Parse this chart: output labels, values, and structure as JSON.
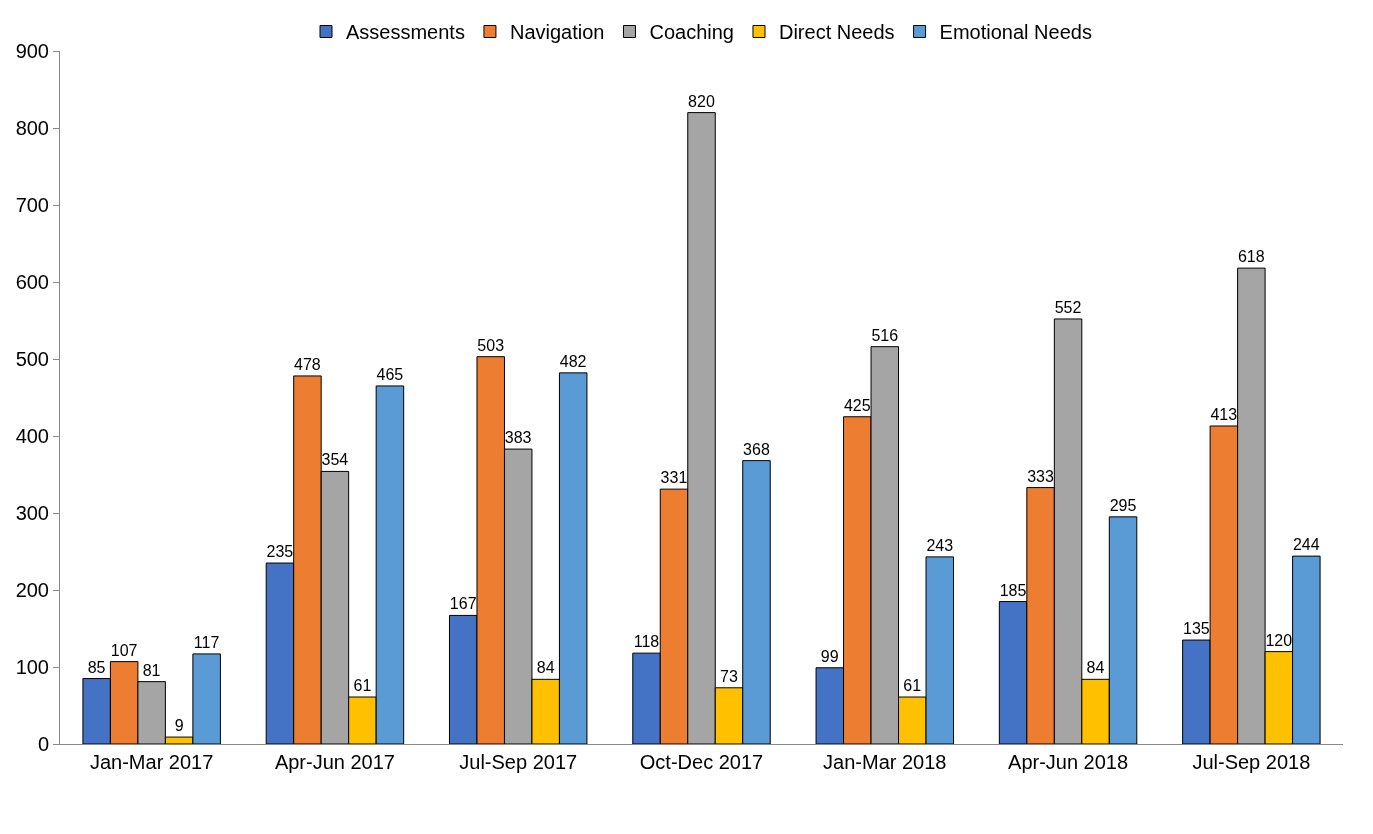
{
  "chart_data": {
    "type": "bar",
    "categories": [
      "Jan-Mar 2017",
      "Apr-Jun 2017",
      "Jul-Sep 2017",
      "Oct-Dec 2017",
      "Jan-Mar 2018",
      "Apr-Jun 2018",
      "Jul-Sep 2018"
    ],
    "series": [
      {
        "name": "Assessments",
        "color": "#4472c4",
        "values": [
          85,
          235,
          167,
          118,
          99,
          185,
          135
        ]
      },
      {
        "name": "Navigation",
        "color": "#ed7d31",
        "values": [
          107,
          478,
          503,
          331,
          425,
          333,
          413
        ]
      },
      {
        "name": "Coaching",
        "color": "#a5a5a5",
        "values": [
          81,
          354,
          383,
          820,
          516,
          552,
          618
        ]
      },
      {
        "name": "Direct Needs",
        "color": "#ffc000",
        "values": [
          9,
          61,
          84,
          73,
          61,
          84,
          120
        ]
      },
      {
        "name": "Emotional Needs",
        "color": "#5b9bd5",
        "values": [
          117,
          465,
          482,
          368,
          243,
          295,
          244
        ]
      }
    ],
    "ylim": [
      0,
      900
    ],
    "yticks": [
      0,
      100,
      200,
      300,
      400,
      500,
      600,
      700,
      800,
      900
    ],
    "data_labels": true,
    "legend": "top"
  }
}
